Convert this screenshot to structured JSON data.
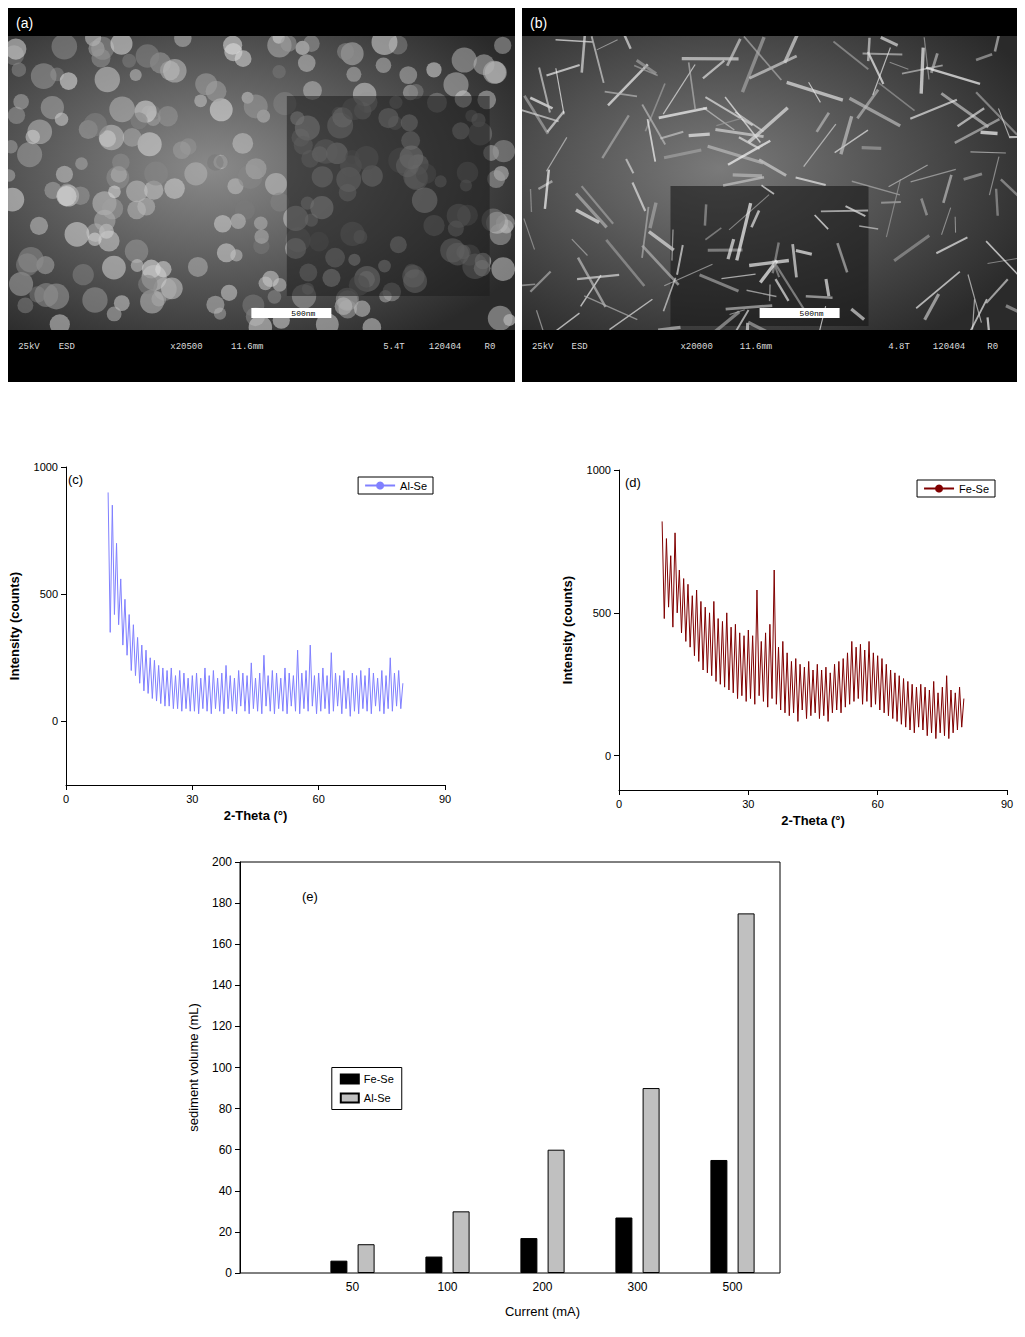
{
  "images": [
    {
      "label": "(a)",
      "scale_bar": "500nm",
      "info": [
        "25kV",
        "ESD",
        "x20500",
        "11.6mm",
        "5.4T",
        "120404",
        "R0"
      ]
    },
    {
      "label": "(b)",
      "scale_bar": "500nm",
      "info": [
        "25kV",
        "ESD",
        "x20000",
        "11.6mm",
        "4.8T",
        "120404",
        "R0"
      ]
    }
  ],
  "chart_data": [
    {
      "type": "line",
      "label": "(c)",
      "xlabel": "2-Theta (°)",
      "ylabel": "Intensity (counts)",
      "xlim": [
        0,
        90
      ],
      "xticks": [
        0,
        30,
        60,
        90
      ],
      "ylim": [
        -250,
        1000
      ],
      "yticks": [
        0,
        500,
        1000
      ],
      "grid": false,
      "legend": "upper right",
      "x": [
        10,
        10.5,
        11,
        11.5,
        12,
        12.5,
        13,
        13.5,
        14,
        14.5,
        15,
        15.5,
        16,
        16.5,
        17,
        17.5,
        18,
        18.5,
        19,
        19.5,
        20,
        20.5,
        21,
        21.5,
        22,
        22.5,
        23,
        23.5,
        24,
        24.5,
        25,
        25.5,
        26,
        26.5,
        27,
        27.5,
        28,
        28.5,
        29,
        29.5,
        30,
        30.5,
        31,
        31.5,
        32,
        32.5,
        33,
        33.5,
        34,
        34.5,
        35,
        35.5,
        36,
        36.5,
        37,
        37.5,
        38,
        38.5,
        39,
        39.5,
        40,
        40.5,
        41,
        41.5,
        42,
        42.5,
        43,
        43.5,
        44,
        44.5,
        45,
        45.5,
        46,
        46.5,
        47,
        47.5,
        48,
        48.5,
        49,
        49.5,
        50,
        50.5,
        51,
        51.5,
        52,
        52.5,
        53,
        53.5,
        54,
        54.5,
        55,
        55.5,
        56,
        56.5,
        57,
        57.5,
        58,
        58.5,
        59,
        59.5,
        60,
        60.5,
        61,
        61.5,
        62,
        62.5,
        63,
        63.5,
        64,
        64.5,
        65,
        65.5,
        66,
        66.5,
        67,
        67.5,
        68,
        68.5,
        69,
        69.5,
        70,
        70.5,
        71,
        71.5,
        72,
        72.5,
        73,
        73.5,
        74,
        74.5,
        75,
        75.5,
        76,
        76.5,
        77,
        77.5,
        78,
        78.5,
        79,
        79.5,
        80
      ],
      "series": [
        {
          "name": "Al-Se",
          "color": "#8080ff",
          "values": [
            900,
            350,
            850,
            420,
            700,
            380,
            560,
            300,
            480,
            260,
            420,
            200,
            380,
            180,
            330,
            150,
            300,
            120,
            280,
            110,
            250,
            90,
            240,
            80,
            220,
            70,
            210,
            60,
            200,
            60,
            210,
            50,
            180,
            50,
            200,
            40,
            190,
            50,
            170,
            40,
            180,
            40,
            190,
            30,
            170,
            50,
            210,
            40,
            180,
            30,
            200,
            50,
            170,
            40,
            190,
            30,
            220,
            50,
            180,
            40,
            170,
            30,
            200,
            60,
            190,
            40,
            180,
            30,
            230,
            50,
            170,
            40,
            190,
            30,
            260,
            60,
            180,
            40,
            200,
            30,
            190,
            50,
            170,
            40,
            210,
            30,
            190,
            60,
            180,
            40,
            280,
            30,
            190,
            50,
            200,
            40,
            300,
            60,
            180,
            30,
            190,
            40,
            210,
            50,
            180,
            30,
            270,
            40,
            190,
            60,
            180,
            30,
            200,
            50,
            170,
            20,
            190,
            40,
            180,
            30,
            200,
            50,
            180,
            40,
            210,
            30,
            190,
            60,
            170,
            40,
            200,
            30,
            180,
            50,
            250,
            40,
            190,
            60,
            200,
            50,
            150
          ]
        }
      ]
    },
    {
      "type": "line",
      "label": "(d)",
      "xlabel": "2-Theta (°)",
      "ylabel": "Intensity (counts)",
      "xlim": [
        0,
        90
      ],
      "xticks": [
        0,
        30,
        60,
        90
      ],
      "ylim": [
        -120,
        1000
      ],
      "yticks": [
        0,
        500,
        1000
      ],
      "grid": false,
      "legend": "upper right",
      "x": [
        10,
        10.5,
        11,
        11.5,
        12,
        12.5,
        13,
        13.5,
        14,
        14.5,
        15,
        15.5,
        16,
        16.5,
        17,
        17.5,
        18,
        18.5,
        19,
        19.5,
        20,
        20.5,
        21,
        21.5,
        22,
        22.5,
        23,
        23.5,
        24,
        24.5,
        25,
        25.5,
        26,
        26.5,
        27,
        27.5,
        28,
        28.5,
        29,
        29.5,
        30,
        30.5,
        31,
        31.5,
        32,
        32.5,
        33,
        33.5,
        34,
        34.5,
        35,
        35.5,
        36,
        36.5,
        37,
        37.5,
        38,
        38.5,
        39,
        39.5,
        40,
        40.5,
        41,
        41.5,
        42,
        42.5,
        43,
        43.5,
        44,
        44.5,
        45,
        45.5,
        46,
        46.5,
        47,
        47.5,
        48,
        48.5,
        49,
        49.5,
        50,
        50.5,
        51,
        51.5,
        52,
        52.5,
        53,
        53.5,
        54,
        54.5,
        55,
        55.5,
        56,
        56.5,
        57,
        57.5,
        58,
        58.5,
        59,
        59.5,
        60,
        60.5,
        61,
        61.5,
        62,
        62.5,
        63,
        63.5,
        64,
        64.5,
        65,
        65.5,
        66,
        66.5,
        67,
        67.5,
        68,
        68.5,
        69,
        69.5,
        70,
        70.5,
        71,
        71.5,
        72,
        72.5,
        73,
        73.5,
        74,
        74.5,
        75,
        75.5,
        76,
        76.5,
        77,
        77.5,
        78,
        78.5,
        79,
        79.5,
        80
      ],
      "series": [
        {
          "name": "Fe-Se",
          "color": "#800000",
          "values": [
            820,
            480,
            760,
            520,
            700,
            450,
            780,
            500,
            650,
            430,
            620,
            400,
            600,
            380,
            560,
            350,
            580,
            330,
            540,
            300,
            520,
            290,
            500,
            280,
            540,
            260,
            480,
            250,
            470,
            240,
            500,
            230,
            450,
            220,
            460,
            200,
            430,
            210,
            420,
            190,
            440,
            200,
            420,
            180,
            580,
            210,
            400,
            190,
            430,
            170,
            460,
            200,
            650,
            180,
            380,
            160,
            400,
            150,
            360,
            140,
            330,
            150,
            340,
            120,
            320,
            160,
            310,
            130,
            330,
            140,
            300,
            150,
            320,
            130,
            300,
            140,
            310,
            120,
            290,
            150,
            320,
            160,
            330,
            150,
            340,
            170,
            360,
            180,
            400,
            190,
            380,
            200,
            390,
            180,
            370,
            190,
            400,
            170,
            360,
            180,
            350,
            160,
            340,
            150,
            320,
            140,
            300,
            130,
            290,
            120,
            280,
            110,
            270,
            100,
            260,
            90,
            250,
            80,
            240,
            100,
            250,
            90,
            240,
            70,
            230,
            80,
            260,
            60,
            220,
            80,
            240,
            70,
            280,
            60,
            230,
            80,
            220,
            90,
            240,
            100,
            200
          ]
        }
      ]
    },
    {
      "type": "bar",
      "label": "(e)",
      "xlabel": "Current (mA)",
      "ylabel": "sediment volume (mL)",
      "categories": [
        "50",
        "100",
        "200",
        "300",
        "500"
      ],
      "ylim": [
        0,
        200
      ],
      "yticks": [
        0,
        20,
        40,
        60,
        80,
        100,
        120,
        140,
        160,
        180,
        200
      ],
      "grid": false,
      "legend": "center left",
      "series": [
        {
          "name": "Fe-Se",
          "color": "#000000",
          "values": [
            6,
            8,
            17,
            27,
            55
          ]
        },
        {
          "name": "Al-Se",
          "color": "#c0c0c0",
          "values": [
            14,
            30,
            60,
            90,
            175
          ]
        }
      ]
    }
  ]
}
